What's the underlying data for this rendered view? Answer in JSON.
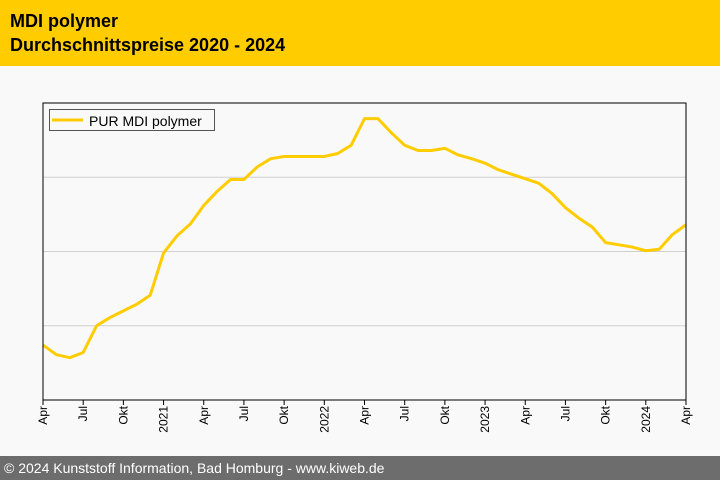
{
  "header": {
    "title": "MDI polymer",
    "subtitle": "Durchschnittspreise 2020 - 2024"
  },
  "footer": {
    "text": "© 2024 Kunststoff Information, Bad Homburg - www.kiweb.de"
  },
  "colors": {
    "accent": "#ffcc00",
    "line": "#ffcc00",
    "footer": "#6d6d6d"
  },
  "chart_data": {
    "type": "line",
    "title": "MDI polymer",
    "xlabel": "",
    "ylabel": "",
    "ylim": [
      0,
      4
    ],
    "grid": true,
    "legend": "top-left",
    "x_start": "Apr 2020",
    "x_end": "Apr 2024",
    "x_step": "month",
    "tick_labels": [
      "Apr",
      "Jul",
      "Okt",
      "2021",
      "Apr",
      "Jul",
      "Okt",
      "2022",
      "Apr",
      "Jul",
      "Okt",
      "2023",
      "Apr",
      "Jul",
      "Okt",
      "2024",
      "Apr"
    ],
    "series": [
      {
        "name": "PUR MDI polymer",
        "values": [
          0.74,
          0.61,
          0.57,
          0.64,
          1.0,
          1.11,
          1.2,
          1.29,
          1.41,
          1.98,
          2.21,
          2.37,
          2.62,
          2.81,
          2.97,
          2.97,
          3.14,
          3.25,
          3.28,
          3.28,
          3.28,
          3.28,
          3.32,
          3.43,
          3.79,
          3.79,
          3.6,
          3.43,
          3.36,
          3.36,
          3.39,
          3.3,
          3.25,
          3.19,
          3.1,
          3.04,
          2.98,
          2.92,
          2.78,
          2.59,
          2.45,
          2.33,
          2.12,
          2.09,
          2.06,
          2.01,
          2.03,
          2.23,
          2.36
        ]
      }
    ]
  }
}
